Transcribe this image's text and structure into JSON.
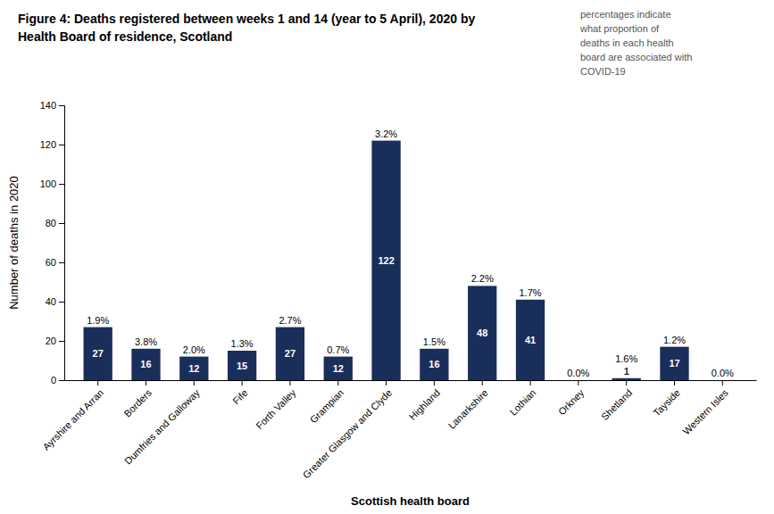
{
  "chart_data": {
    "type": "bar",
    "title": "Figure 4: Deaths registered between weeks 1 and 14 (year to 5 April), 2020 by\nHealth Board of residence, Scotland",
    "x_label": "Scottish health board",
    "y_label": "Number of deaths in 2020",
    "annotation": "percentages indicate\nwhat proportion of\ndeaths in each health\nboard are associated with\nCOVID-19",
    "categories": [
      "Ayrshire and Arran",
      "Borders",
      "Dumfries and Galloway",
      "Fife",
      "Forth Valley",
      "Grampian",
      "Greater Glasgow and Clyde",
      "Highland",
      "Lanarkshire",
      "Lothian",
      "Orkney",
      "Shetland",
      "Tayside",
      "Western Isles"
    ],
    "values": [
      27,
      16,
      12,
      15,
      27,
      12,
      122,
      16,
      48,
      41,
      0,
      1,
      17,
      0
    ],
    "percentages": [
      "1.9%",
      "3.8%",
      "2.0%",
      "1.3%",
      "2.7%",
      "0.7%",
      "3.2%",
      "1.5%",
      "2.2%",
      "1.7%",
      "0.0%",
      "1.6%",
      "1.2%",
      "0.0%"
    ],
    "color": "#1a2e5a",
    "ylim": [
      0,
      140
    ],
    "yticks": [
      0,
      20,
      40,
      60,
      80,
      100,
      120,
      140
    ],
    "grid": false,
    "data_labels": true
  }
}
